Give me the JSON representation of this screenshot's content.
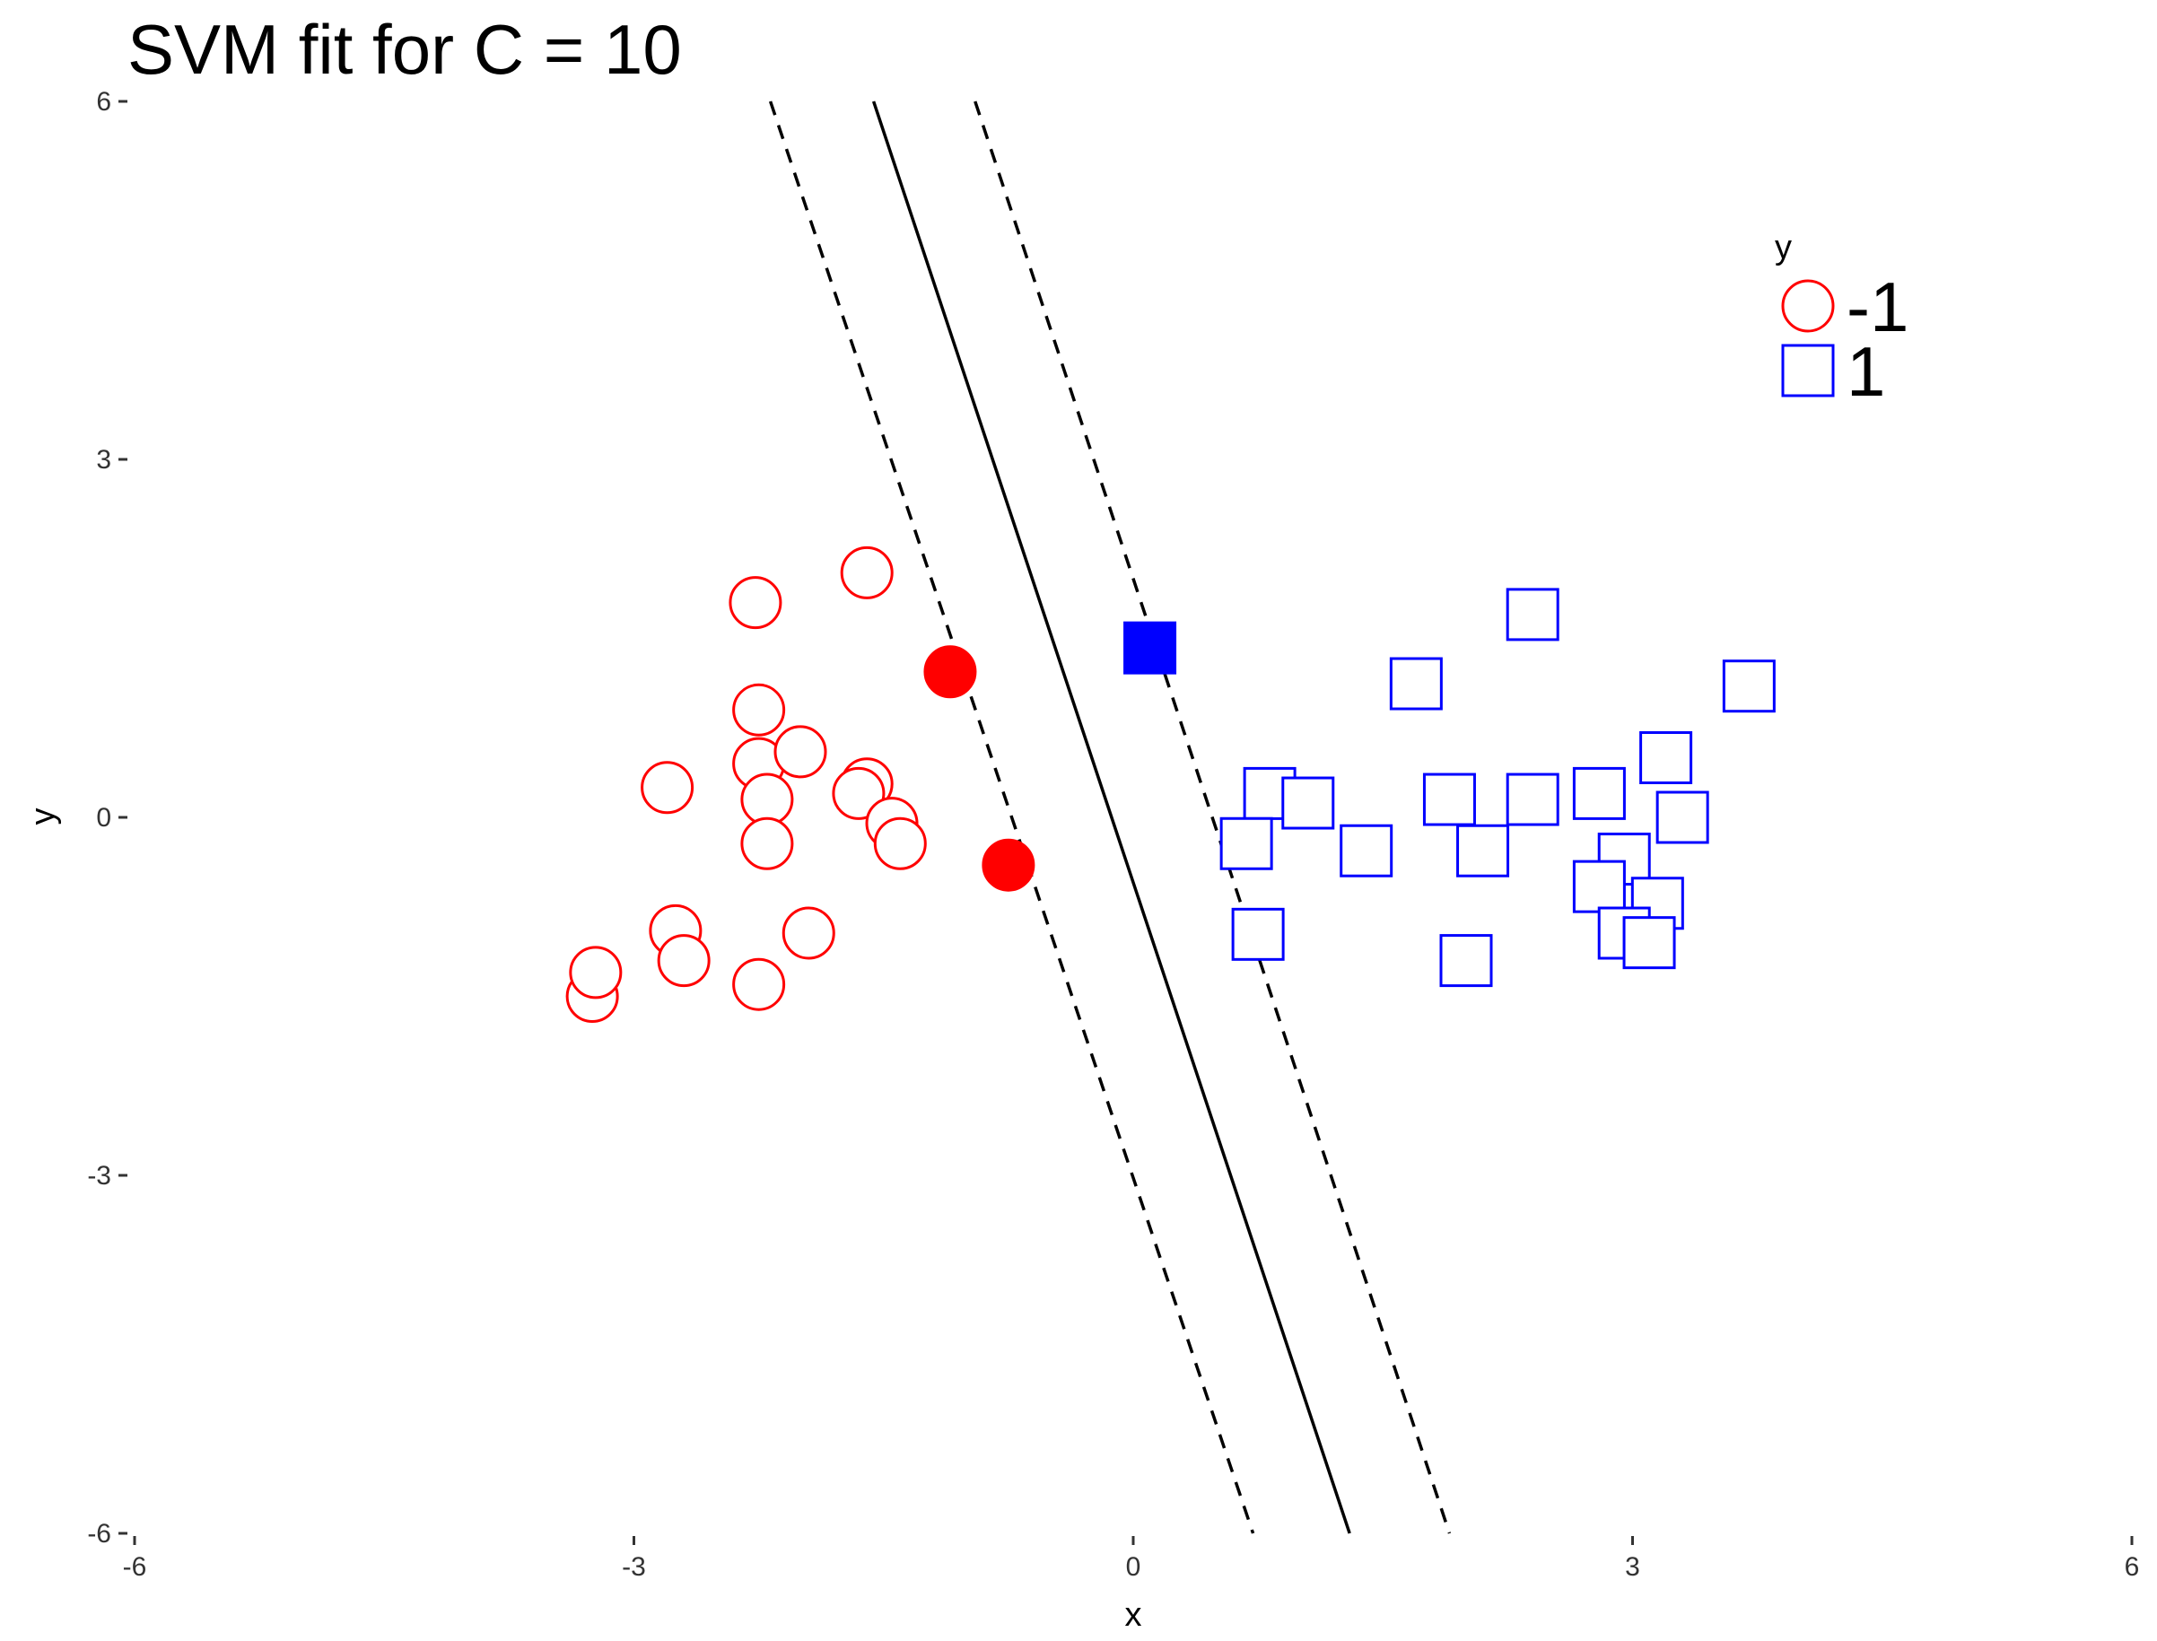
{
  "chart_data": {
    "type": "scatter",
    "title": "SVM fit for C = 10",
    "xlabel": "x",
    "ylabel": "y",
    "xlim": [
      -6,
      6
    ],
    "ylim": [
      -6,
      6
    ],
    "xticks": [
      -6,
      -3,
      0,
      3,
      6
    ],
    "yticks": [
      -6,
      -3,
      0,
      3,
      6
    ],
    "xtick_labels": [
      "-6",
      "-3",
      "0",
      "3",
      "6"
    ],
    "ytick_labels": [
      "-6",
      "-3",
      "0",
      "3",
      "6"
    ],
    "grid": false,
    "legend": {
      "title": "y",
      "position": "top-right",
      "entries": [
        {
          "label": "-1",
          "shape": "circle",
          "color": "#ff0000"
        },
        {
          "label": "1",
          "shape": "square",
          "color": "#0000ff"
        }
      ]
    },
    "series": [
      {
        "name": "-1",
        "shape": "circle",
        "color": "#ff0000",
        "x": [
          -1.6,
          -2.27,
          -1.1,
          -2.25,
          -2.25,
          -2.0,
          -1.6,
          -2.8,
          -2.2,
          -1.65,
          -1.45,
          -2.2,
          -1.4,
          -0.75,
          -2.75,
          -1.95,
          -2.7,
          -3.25,
          -3.23,
          -2.25
        ],
        "y": [
          2.05,
          1.8,
          1.22,
          0.9,
          0.45,
          0.55,
          0.28,
          0.25,
          0.15,
          0.2,
          -0.05,
          -0.22,
          -0.22,
          -0.4,
          -0.95,
          -0.97,
          -1.2,
          -1.5,
          -1.3,
          -1.4
        ],
        "support_vector": [
          false,
          false,
          true,
          false,
          false,
          false,
          false,
          false,
          false,
          false,
          false,
          false,
          false,
          true,
          false,
          false,
          false,
          false,
          false,
          false
        ]
      },
      {
        "name": "1",
        "shape": "square",
        "color": "#0000ff",
        "x": [
          2.4,
          0.1,
          1.7,
          3.7,
          3.2,
          0.82,
          1.05,
          1.9,
          2.4,
          2.8,
          3.3,
          0.68,
          1.4,
          2.1,
          2.95,
          2.8,
          3.15,
          0.75,
          2.95,
          3.1,
          2.0
        ],
        "y": [
          1.7,
          1.42,
          1.12,
          1.1,
          0.5,
          0.2,
          0.12,
          0.15,
          0.15,
          0.2,
          0.0,
          -0.22,
          -0.28,
          -0.28,
          -0.35,
          -0.58,
          -0.72,
          -0.98,
          -0.97,
          -1.05,
          -1.2
        ],
        "support_vector": [
          false,
          true,
          false,
          false,
          false,
          false,
          false,
          false,
          false,
          false,
          false,
          false,
          false,
          false,
          false,
          false,
          false,
          false,
          false,
          false,
          false
        ]
      }
    ],
    "lines": [
      {
        "name": "decision-boundary",
        "style": "solid",
        "color": "#000000",
        "x": [
          -1.56,
          1.3
        ],
        "y": [
          6.0,
          -6.0
        ]
      },
      {
        "name": "margin-lower",
        "style": "dashed",
        "color": "#000000",
        "x": [
          -2.18,
          0.72
        ],
        "y": [
          6.0,
          -6.0
        ]
      },
      {
        "name": "margin-upper",
        "style": "dashed",
        "color": "#000000",
        "x": [
          -0.95,
          1.9
        ],
        "y": [
          6.0,
          -6.0
        ]
      }
    ]
  }
}
